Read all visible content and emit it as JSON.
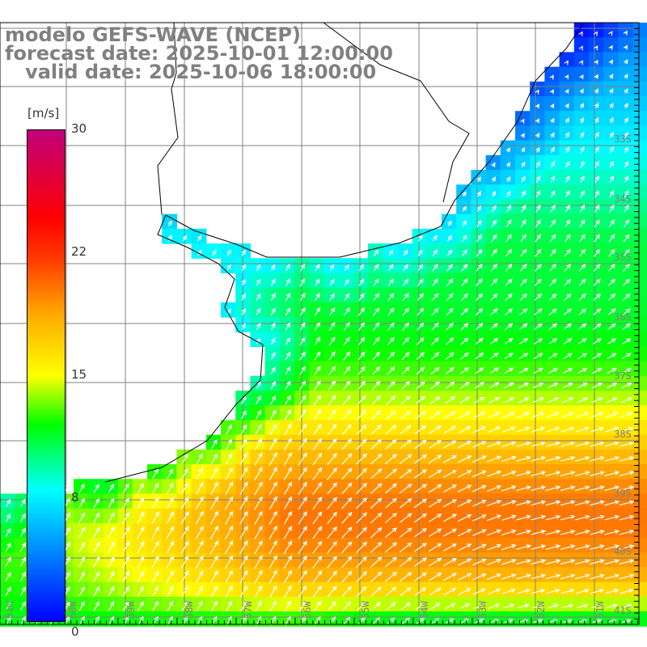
{
  "title": {
    "line1": "modelo GEFS-WAVE (NCEP)",
    "line2": "forecast date: 2025-10-01 12:00:00",
    "line3": "   valid date: 2025-10-06 18:00:00"
  },
  "colorbar": {
    "unit": "[m/s]",
    "labels": [
      "30",
      "22",
      "15",
      "8",
      "0"
    ]
  },
  "axes": {
    "lon_labels": [
      "61W",
      "60W",
      "59W",
      "58W",
      "57W",
      "56W",
      "55W",
      "54W",
      "53W",
      "52W",
      "51W"
    ],
    "lat_labels": [
      "33S",
      "34S",
      "35S",
      "36S",
      "37S",
      "38S",
      "39S",
      "40S",
      "41S"
    ]
  },
  "colors": {
    "land": "#ffffff",
    "grid": "#808080",
    "coast": "#000000",
    "arrow": "#ffffff"
  }
}
